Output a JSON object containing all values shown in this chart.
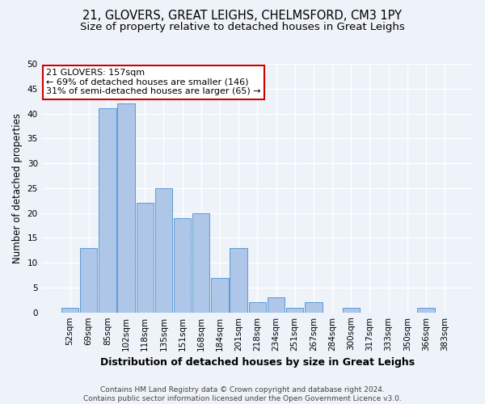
{
  "title": "21, GLOVERS, GREAT LEIGHS, CHELMSFORD, CM3 1PY",
  "subtitle": "Size of property relative to detached houses in Great Leighs",
  "xlabel": "Distribution of detached houses by size in Great Leighs",
  "ylabel": "Number of detached properties",
  "bar_labels": [
    "52sqm",
    "69sqm",
    "85sqm",
    "102sqm",
    "118sqm",
    "135sqm",
    "151sqm",
    "168sqm",
    "184sqm",
    "201sqm",
    "218sqm",
    "234sqm",
    "251sqm",
    "267sqm",
    "284sqm",
    "300sqm",
    "317sqm",
    "333sqm",
    "350sqm",
    "366sqm",
    "383sqm"
  ],
  "bar_values": [
    1,
    13,
    41,
    42,
    22,
    25,
    19,
    20,
    7,
    13,
    2,
    3,
    1,
    2,
    0,
    1,
    0,
    0,
    0,
    1,
    0
  ],
  "bar_color": "#aec6e8",
  "bar_edgecolor": "#5b9bd5",
  "bg_color": "#eef2f9",
  "grid_color": "#ffffff",
  "annotation_text": "21 GLOVERS: 157sqm\n← 69% of detached houses are smaller (146)\n31% of semi-detached houses are larger (65) →",
  "annotation_box_color": "#ffffff",
  "annotation_box_edgecolor": "#cc0000",
  "ylim": [
    0,
    50
  ],
  "yticks": [
    0,
    5,
    10,
    15,
    20,
    25,
    30,
    35,
    40,
    45,
    50
  ],
  "footer": "Contains HM Land Registry data © Crown copyright and database right 2024.\nContains public sector information licensed under the Open Government Licence v3.0.",
  "title_fontsize": 10.5,
  "subtitle_fontsize": 9.5,
  "xlabel_fontsize": 9,
  "ylabel_fontsize": 8.5,
  "tick_fontsize": 7.5,
  "annotation_fontsize": 8,
  "footer_fontsize": 6.5
}
